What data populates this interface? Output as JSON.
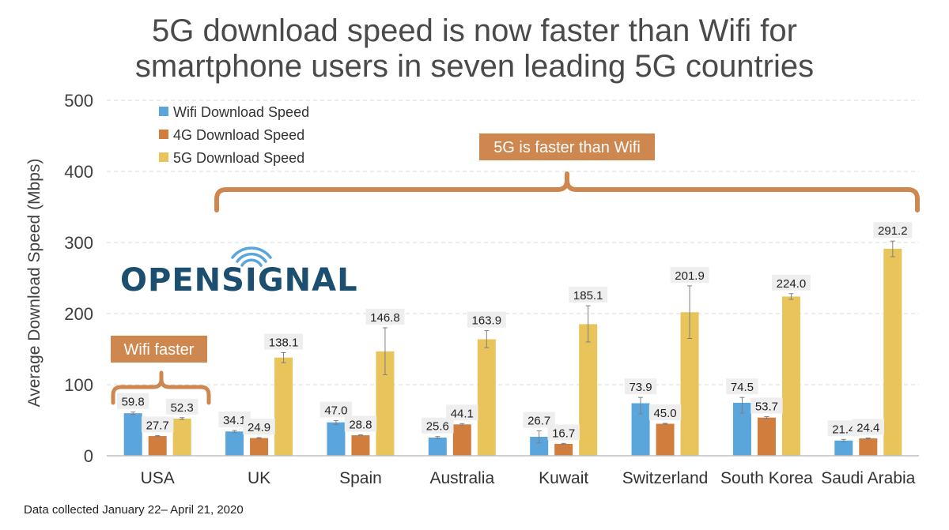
{
  "chart_data": {
    "type": "bar",
    "title_lines": [
      "5G download speed is now faster than Wifi for",
      "smartphone users in seven leading 5G countries"
    ],
    "ylabel": "Average Download Speed (Mbps)",
    "ylim": [
      0,
      500
    ],
    "yticks": [
      0,
      100,
      200,
      300,
      400,
      500
    ],
    "grid": true,
    "legend_position": "top-left",
    "categories": [
      "USA",
      "UK",
      "Spain",
      "Australia",
      "Kuwait",
      "Switzerland",
      "South Korea",
      "Saudi Arabia"
    ],
    "series": [
      {
        "name": "Wifi Download Speed",
        "color": "#5aa5dc",
        "values": [
          59.8,
          34.1,
          47.0,
          25.6,
          26.7,
          73.9,
          74.5,
          21.4
        ],
        "labels": [
          "59.8",
          "34.1",
          "47.0",
          "25.6",
          "26.7",
          "73.9",
          "74.5",
          "21.4"
        ],
        "error_low": [
          58,
          32.5,
          44,
          24,
          18,
          59,
          60,
          19.5
        ],
        "error_high": [
          61.5,
          35.5,
          49.5,
          27,
          35,
          82,
          82,
          23
        ]
      },
      {
        "name": "4G Download Speed",
        "color": "#d07d3e",
        "values": [
          27.7,
          24.9,
          28.8,
          44.1,
          16.7,
          45.0,
          53.7,
          24.4
        ],
        "labels": [
          "27.7",
          "24.9",
          "28.8",
          "44.1",
          "16.7",
          "45.0",
          "53.7",
          "24.4"
        ],
        "error_low": [
          27,
          24.3,
          28.2,
          43,
          16,
          44.4,
          52.5,
          23.8
        ],
        "error_high": [
          28.4,
          25.5,
          29.4,
          45.2,
          17.4,
          45.6,
          55,
          25
        ]
      },
      {
        "name": "5G Download Speed",
        "color": "#e8c45a",
        "values": [
          52.3,
          138.1,
          146.8,
          163.9,
          185.1,
          201.9,
          224.0,
          291.2
        ],
        "labels": [
          "52.3",
          "138.1",
          "146.8",
          "163.9",
          "185.1",
          "201.9",
          "224.0",
          "291.2"
        ],
        "error_low": [
          51,
          131,
          114,
          152,
          160,
          165,
          220,
          280
        ],
        "error_high": [
          53.6,
          145,
          180,
          176,
          211,
          239,
          228,
          302
        ]
      }
    ],
    "annotations": {
      "wifi_faster": "Wifi faster",
      "fiveg_faster": "5G is faster than Wifi",
      "callout_color": "#cf8750"
    },
    "footer": "Data collected January 22– April 21, 2020",
    "logo_text": "OPENSIGNAL"
  }
}
